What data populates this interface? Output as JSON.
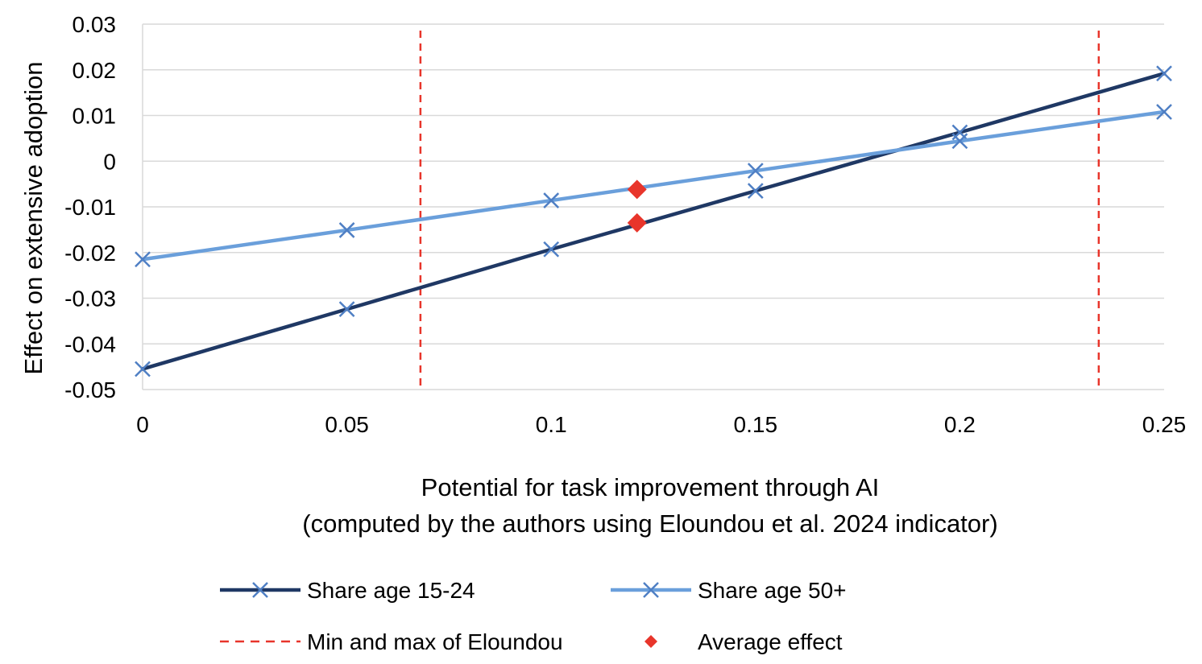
{
  "chart_data": {
    "type": "line",
    "title": "",
    "xlabel_lines": [
      "Potential for task improvement through AI",
      "(computed by the authors using Eloundou et al. 2024 indicator)"
    ],
    "ylabel": "Effect on extensive adoption",
    "xlim": [
      0,
      0.25
    ],
    "ylim": [
      -0.05,
      0.03
    ],
    "x_ticks": [
      "0",
      "0.05",
      "0.1",
      "0.15",
      "0.2",
      "0.25"
    ],
    "x_tick_values": [
      0,
      0.05,
      0.1,
      0.15,
      0.2,
      0.25
    ],
    "y_ticks": [
      "0.03",
      "0.02",
      "0.01",
      "0",
      "-0.01",
      "-0.02",
      "-0.03",
      "-0.04",
      "-0.05"
    ],
    "y_tick_values": [
      0.03,
      0.02,
      0.01,
      0,
      -0.01,
      -0.02,
      -0.03,
      -0.04,
      -0.05
    ],
    "grid": "horizontal",
    "legend_position": "bottom",
    "series": [
      {
        "name": "Share age 15-24",
        "color": "#1f3864",
        "marker": "x",
        "x": [
          0,
          0.05,
          0.1,
          0.15,
          0.2,
          0.25
        ],
        "y": [
          -0.0455,
          -0.0324,
          -0.0193,
          -0.0065,
          0.0063,
          0.0192
        ]
      },
      {
        "name": "Share age 50+",
        "color": "#6a9fdb",
        "marker": "x",
        "x": [
          0,
          0.05,
          0.1,
          0.15,
          0.2,
          0.25
        ],
        "y": [
          -0.0215,
          -0.0151,
          -0.0086,
          -0.0021,
          0.0044,
          0.0108
        ]
      }
    ],
    "reference_lines": {
      "name": "Min and max of Eloundou",
      "color": "#e8352b",
      "x": [
        0.068,
        0.234
      ]
    },
    "average_effect": {
      "name": "Average effect",
      "color": "#e8352b",
      "marker": "diamond",
      "points": [
        {
          "x": 0.121,
          "y": -0.0062
        },
        {
          "x": 0.121,
          "y": -0.0135
        }
      ]
    },
    "legend": [
      {
        "label": "Share age 15-24",
        "kind": "line-x",
        "color": "#1f3864"
      },
      {
        "label": "Share age 50+",
        "kind": "line-x",
        "color": "#6a9fdb"
      },
      {
        "label": "Min and max of Eloundou",
        "kind": "dashed",
        "color": "#e8352b"
      },
      {
        "label": "Average effect",
        "kind": "diamond",
        "color": "#e8352b"
      }
    ]
  }
}
